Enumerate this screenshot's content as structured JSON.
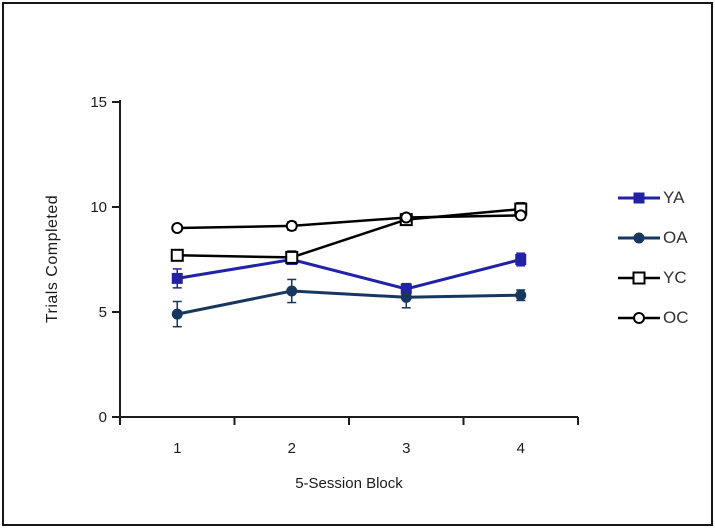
{
  "figure": {
    "background": "#ffffff",
    "border_color": "#161616",
    "text_color": "#1c1c1c"
  },
  "chart_data": {
    "type": "line",
    "title": "",
    "xlabel": "5-Session Block",
    "ylabel": "Trials Completed",
    "categories": [
      "1",
      "2",
      "3",
      "4"
    ],
    "ylim": [
      0,
      15
    ],
    "yticks": [
      0,
      5,
      10,
      15
    ],
    "grid": false,
    "legend_position": "right-outside",
    "series": [
      {
        "name": "YA",
        "color": "#2222A6",
        "marker": "filled-square",
        "values": [
          6.6,
          7.5,
          6.1,
          7.5
        ],
        "errors": [
          0.45,
          0.2,
          0.25,
          0.3
        ]
      },
      {
        "name": "OA",
        "color": "#17375E",
        "marker": "filled-circle",
        "values": [
          4.9,
          6.0,
          5.7,
          5.8
        ],
        "errors": [
          0.6,
          0.55,
          0.5,
          0.25
        ]
      },
      {
        "name": "YC",
        "color": "#000000",
        "marker": "open-square",
        "values": [
          7.7,
          7.6,
          9.4,
          9.9
        ],
        "errors": [
          0.25,
          0.3,
          0.2,
          0.3
        ]
      },
      {
        "name": "OC",
        "color": "#000000",
        "marker": "open-circle",
        "values": [
          9.0,
          9.1,
          9.5,
          9.6
        ],
        "errors": [
          0.15,
          0.2,
          0.15,
          0.15
        ]
      }
    ]
  }
}
